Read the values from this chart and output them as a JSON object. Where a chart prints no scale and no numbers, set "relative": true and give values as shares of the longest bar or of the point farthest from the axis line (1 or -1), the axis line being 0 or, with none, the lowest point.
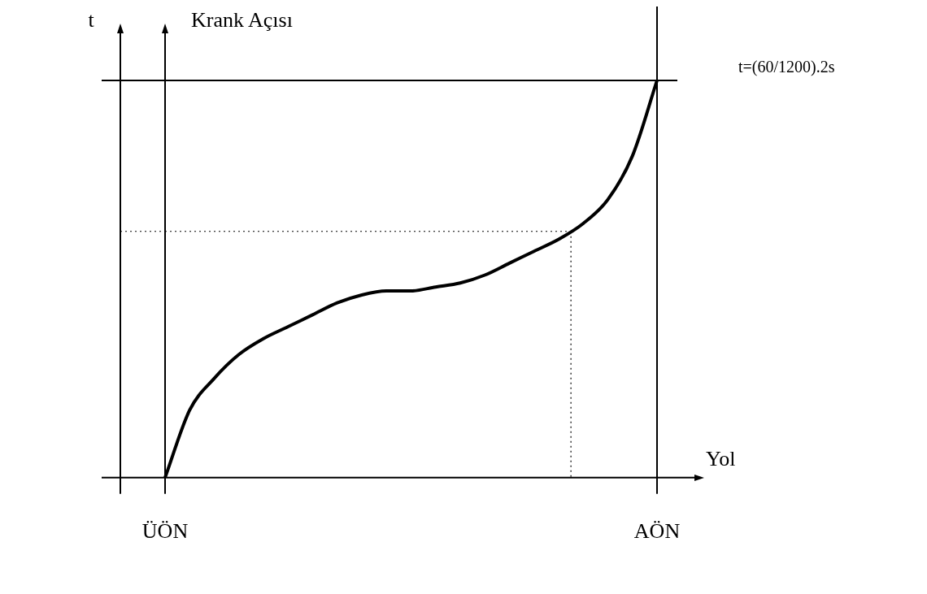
{
  "chart_data": {
    "type": "line",
    "relative": true,
    "ylabel": "Krank Açısı",
    "xlabel": "Yol",
    "color": "#000000",
    "line_style": "solid",
    "marker": "none",
    "grid": false,
    "legend": false,
    "categories": [
      "ÜÖN",
      null,
      null,
      null,
      null,
      null,
      null,
      null,
      null,
      null,
      null,
      null,
      null,
      null,
      null,
      null,
      null,
      null,
      null,
      null,
      "AÖN"
    ],
    "values": [
      0,
      0.17,
      0.25,
      0.31,
      0.35,
      0.38,
      0.41,
      0.44,
      0.46,
      0.47,
      0.47,
      0.48,
      0.49,
      0.51,
      0.54,
      0.57,
      0.6,
      0.64,
      0.7,
      0.81,
      1
    ],
    "ref_lines": [
      {
        "axis": "y",
        "value": 1,
        "label": "t=(60/1200).2s",
        "line_style": "solid"
      },
      {
        "axis": "y",
        "value": 0.62,
        "label": null,
        "line_style": "dotted"
      },
      {
        "axis": "x",
        "value": "AÖN",
        "label": null,
        "line_style": "solid"
      }
    ],
    "annotations": [
      "t"
    ]
  }
}
